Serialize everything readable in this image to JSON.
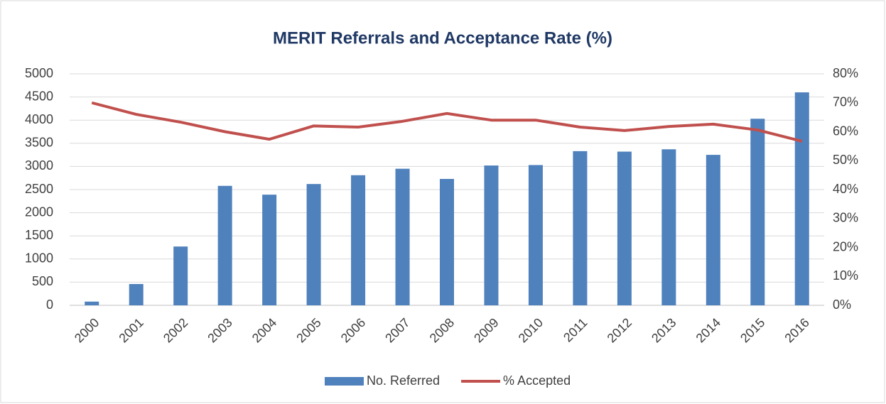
{
  "chart_data": {
    "type": "bar",
    "title": "MERIT Referrals and Acceptance Rate (%)",
    "categories": [
      "2000",
      "2001",
      "2002",
      "2003",
      "2004",
      "2005",
      "2006",
      "2007",
      "2008",
      "2009",
      "2010",
      "2011",
      "2012",
      "2013",
      "2014",
      "2015",
      "2016"
    ],
    "series": [
      {
        "name": "No. Referred",
        "color": "#4f81bd",
        "values": [
          80,
          460,
          1270,
          2580,
          2390,
          2620,
          2810,
          2950,
          2730,
          3020,
          3030,
          3330,
          3320,
          3370,
          3250,
          4030,
          4600
        ]
      },
      {
        "name": "% Accepted",
        "color": "#c0504d",
        "type": "line",
        "axis": "y2",
        "values": [
          70,
          66,
          63.3,
          60,
          57.4,
          62,
          61.6,
          63.6,
          66.3,
          64,
          64,
          61.6,
          60.4,
          61.8,
          62.6,
          60.6,
          56.7
        ]
      }
    ],
    "ylim": [
      0,
      5000
    ],
    "yticks": [
      0,
      500,
      1000,
      1500,
      2000,
      2500,
      3000,
      3500,
      4000,
      4500,
      5000
    ],
    "y2lim": [
      0,
      80
    ],
    "y2ticks": [
      {
        "value": 0,
        "label": "0%"
      },
      {
        "value": 10,
        "label": "10%"
      },
      {
        "value": 20,
        "label": "20%"
      },
      {
        "value": 30,
        "label": "30%"
      },
      {
        "value": 40,
        "label": "40%"
      },
      {
        "value": 50,
        "label": "50%"
      },
      {
        "value": 60,
        "label": "60%"
      },
      {
        "value": 70,
        "label": "70%"
      },
      {
        "value": 80,
        "label": "80%"
      }
    ],
    "grid": true,
    "legend": "bottom"
  }
}
